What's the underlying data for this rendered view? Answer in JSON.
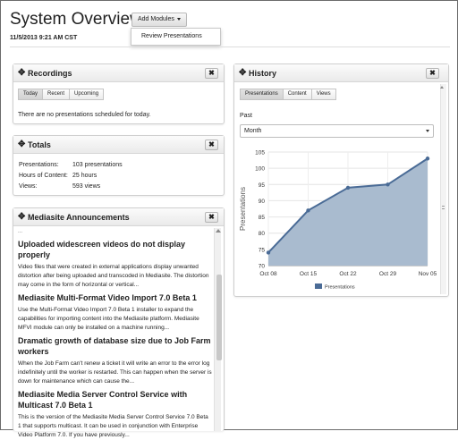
{
  "header": {
    "title": "System Overview",
    "add_modules_label": "Add Modules",
    "dropdown_item": "Review Presentations",
    "timestamp": "11/5/2013 9:21 AM CST"
  },
  "recordings": {
    "title": "Recordings",
    "tabs": [
      "Today",
      "Recent",
      "Upcoming"
    ],
    "active_tab": "Today",
    "empty_message": "There are no presentations scheduled for today."
  },
  "totals": {
    "title": "Totals",
    "rows": [
      {
        "label": "Presentations:",
        "value": "103 presentations"
      },
      {
        "label": "Hours of Content:",
        "value": "25 hours"
      },
      {
        "label": "Views:",
        "value": "593 views"
      }
    ]
  },
  "announcements": {
    "title": "Mediasite Announcements",
    "more": "...",
    "items": [
      {
        "title": "Uploaded widescreen videos do not display properly",
        "body": "Video files that were created in external applications display unwanted distortion after being uploaded and transcoded in Mediasite. The distortion may come in the form of horizontal or vertical..."
      },
      {
        "title": "Mediasite Multi-Format Video Import 7.0 Beta 1",
        "body": "Use the Multi-Format Video Import 7.0 Beta 1 installer to expand the capabilities for importing content into the Mediasite platform. Mediasite MFVI module can only be installed on a machine running..."
      },
      {
        "title": "Dramatic growth of database size due to Job Farm workers",
        "body": "When the Job Farm can't renew a ticket it will write an error to the error log indefinitely until the worker is restarted. This can happen when the server is down for maintenance which can cause the..."
      },
      {
        "title": "Mediasite Media Server Control Service with Multicast 7.0 Beta 1",
        "body": "This is the version of the Mediasite Media Server Control Service 7.0 Beta 1 that supports multicast. It can be used in conjunction with Enterprise Video Platform 7.0. If you have previously..."
      }
    ]
  },
  "history": {
    "title": "History",
    "tabs": [
      "Presentations",
      "Content",
      "Views"
    ],
    "active_tab": "Presentations",
    "past_label": "Past",
    "period_value": "Month"
  },
  "chart_data": {
    "type": "area",
    "categories": [
      "Oct 08",
      "Oct 15",
      "Oct 22",
      "Oct 29",
      "Nov 05"
    ],
    "x": [
      0,
      1,
      2,
      3,
      4,
      5,
      6,
      7,
      8,
      9,
      10,
      11,
      12,
      13,
      14,
      15,
      16,
      17,
      18,
      19,
      20,
      21,
      22,
      23,
      24,
      25,
      26,
      27,
      28
    ],
    "series": [
      {
        "name": "Presentations",
        "points": [
          [
            0,
            74
          ],
          [
            7,
            87
          ],
          [
            14,
            94
          ],
          [
            21,
            95
          ],
          [
            28,
            103
          ]
        ]
      }
    ],
    "ylabel": "Presentations",
    "ylim": [
      70,
      105
    ],
    "yticks": [
      70,
      75,
      80,
      85,
      90,
      95,
      100,
      105
    ],
    "grid": true,
    "legend": "bottom",
    "colors": {
      "fill": "#a9bbcf",
      "line": "#4a6b96",
      "marker": "#4a6b96"
    }
  }
}
